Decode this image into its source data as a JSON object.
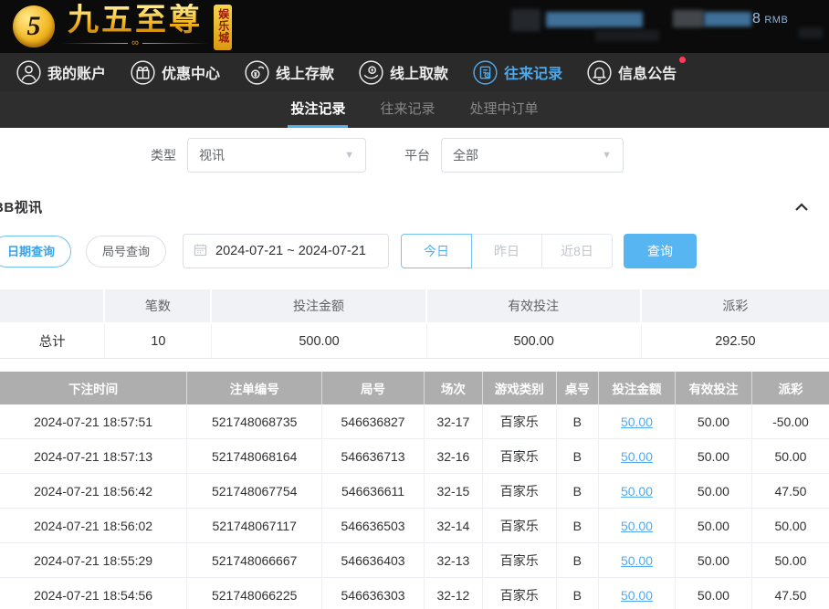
{
  "brand": {
    "name": "九五至尊",
    "badge": "娱乐城",
    "monogram": "5",
    "flourish": "∞"
  },
  "topbar": {
    "balance_visible": "8",
    "currency": "RMB"
  },
  "nav": {
    "items": [
      {
        "label": "我的账户",
        "icon": "user-icon",
        "active": false
      },
      {
        "label": "优惠中心",
        "icon": "gift-icon",
        "active": false
      },
      {
        "label": "线上存款",
        "icon": "deposit-icon",
        "active": false
      },
      {
        "label": "线上取款",
        "icon": "withdraw-icon",
        "active": false
      },
      {
        "label": "往来记录",
        "icon": "records-icon",
        "active": true
      },
      {
        "label": "信息公告",
        "icon": "bell-icon",
        "active": false,
        "has_badge": true
      }
    ]
  },
  "tabs": {
    "items": [
      {
        "label": "投注记录",
        "active": true
      },
      {
        "label": "往来记录",
        "active": false
      },
      {
        "label": "处理中订单",
        "active": false
      }
    ]
  },
  "filters": {
    "type_label": "类型",
    "type_value": "视讯",
    "platform_label": "平台",
    "platform_value": "全部"
  },
  "section": {
    "title": "BB视讯"
  },
  "query": {
    "date_tab": "日期查询",
    "round_tab": "局号查询",
    "date_range": "2024-07-21 ~ 2024-07-21",
    "today": "今日",
    "yesterday": "昨日",
    "last8": "近8日",
    "submit": "查询"
  },
  "summary": {
    "col_count": "笔数",
    "col_amount": "投注金额",
    "col_valid": "有效投注",
    "col_payout": "派彩",
    "row_label": "总计",
    "count": "10",
    "amount": "500.00",
    "valid": "500.00",
    "payout": "292.50"
  },
  "table": {
    "headers": [
      "下注时间",
      "注单编号",
      "局号",
      "场次",
      "游戏类别",
      "桌号",
      "投注金额",
      "有效投注",
      "派彩"
    ],
    "rows": [
      {
        "time": "2024-07-21 18:57:51",
        "order": "521748068735",
        "round": "546636827",
        "session": "32-17",
        "game": "百家乐",
        "table": "B",
        "bet": "50.00",
        "valid": "50.00",
        "payout": "-50.00",
        "negative": true
      },
      {
        "time": "2024-07-21 18:57:13",
        "order": "521748068164",
        "round": "546636713",
        "session": "32-16",
        "game": "百家乐",
        "table": "B",
        "bet": "50.00",
        "valid": "50.00",
        "payout": "50.00",
        "negative": false
      },
      {
        "time": "2024-07-21 18:56:42",
        "order": "521748067754",
        "round": "546636611",
        "session": "32-15",
        "game": "百家乐",
        "table": "B",
        "bet": "50.00",
        "valid": "50.00",
        "payout": "47.50",
        "negative": false
      },
      {
        "time": "2024-07-21 18:56:02",
        "order": "521748067117",
        "round": "546636503",
        "session": "32-14",
        "game": "百家乐",
        "table": "B",
        "bet": "50.00",
        "valid": "50.00",
        "payout": "50.00",
        "negative": false
      },
      {
        "time": "2024-07-21 18:55:29",
        "order": "521748066667",
        "round": "546636403",
        "session": "32-13",
        "game": "百家乐",
        "table": "B",
        "bet": "50.00",
        "valid": "50.00",
        "payout": "50.00",
        "negative": false
      },
      {
        "time": "2024-07-21 18:54:56",
        "order": "521748066225",
        "round": "546636303",
        "session": "32-12",
        "game": "百家乐",
        "table": "B",
        "bet": "50.00",
        "valid": "50.00",
        "payout": "47.50",
        "negative": false
      }
    ]
  },
  "colors": {
    "accent_blue": "#57b6f1",
    "link_blue": "#54aaf0",
    "tab_underline": "#4db2ea",
    "negative_red": "#f5515f",
    "table_header_gray": "#aeaeae",
    "gold": "#f5b91e"
  }
}
